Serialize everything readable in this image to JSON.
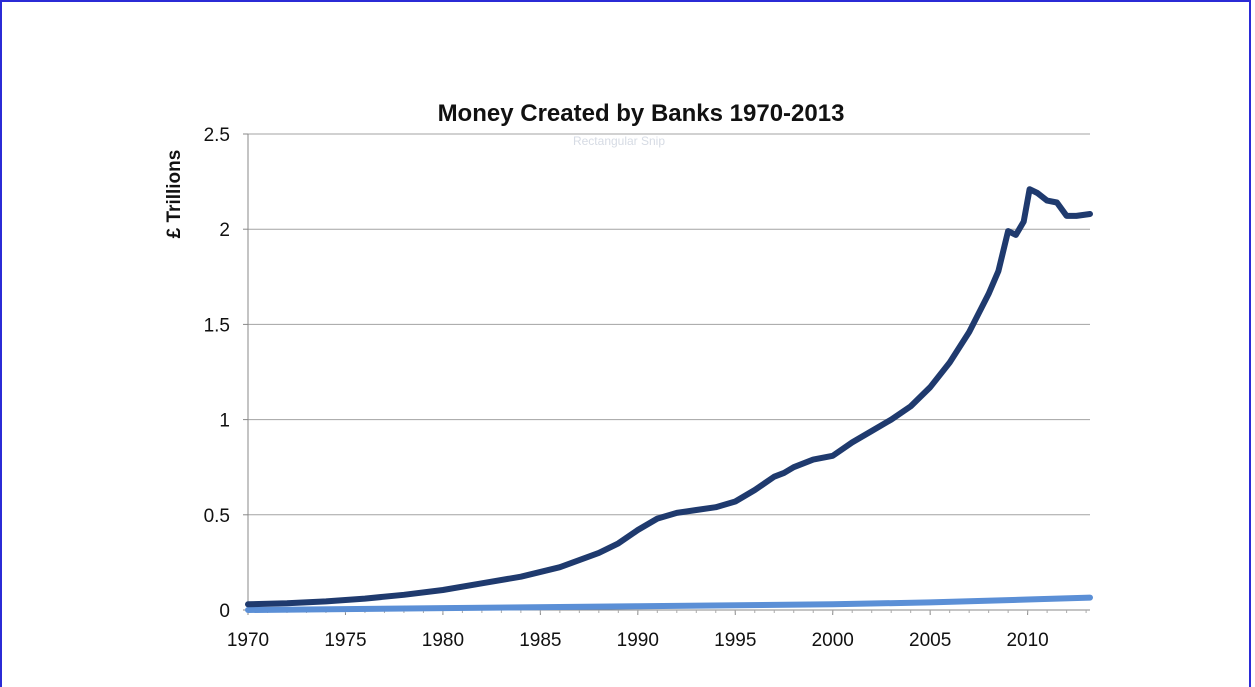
{
  "chart_data": {
    "type": "line",
    "title": "Money Created by Banks 1970-2013",
    "xlabel": "",
    "ylabel": "£ Trillions",
    "xlim": [
      1970,
      2013.2
    ],
    "ylim": [
      0,
      2.5
    ],
    "x_ticks": [
      "1970",
      "1975",
      "1980",
      "1985",
      "1990",
      "1995",
      "2000",
      "2005",
      "2010"
    ],
    "y_ticks": [
      "0",
      "0.5",
      "1",
      "1.5",
      "2",
      "2.5"
    ],
    "grid": true,
    "legend": "none",
    "watermark": "Rectangular Snip",
    "series": [
      {
        "color": "#1f3a6e",
        "points": [
          [
            1970,
            0.03
          ],
          [
            1972,
            0.035
          ],
          [
            1974,
            0.045
          ],
          [
            1976,
            0.06
          ],
          [
            1978,
            0.08
          ],
          [
            1980,
            0.105
          ],
          [
            1982,
            0.14
          ],
          [
            1984,
            0.175
          ],
          [
            1986,
            0.225
          ],
          [
            1988,
            0.3
          ],
          [
            1989,
            0.35
          ],
          [
            1990,
            0.42
          ],
          [
            1991,
            0.48
          ],
          [
            1992,
            0.51
          ],
          [
            1993,
            0.525
          ],
          [
            1994,
            0.54
          ],
          [
            1995,
            0.57
          ],
          [
            1996,
            0.63
          ],
          [
            1997,
            0.7
          ],
          [
            1997.5,
            0.72
          ],
          [
            1998,
            0.75
          ],
          [
            1999,
            0.79
          ],
          [
            2000,
            0.81
          ],
          [
            2001,
            0.88
          ],
          [
            2002,
            0.94
          ],
          [
            2003,
            1.0
          ],
          [
            2004,
            1.07
          ],
          [
            2005,
            1.17
          ],
          [
            2006,
            1.3
          ],
          [
            2007,
            1.46
          ],
          [
            2008,
            1.66
          ],
          [
            2008.5,
            1.78
          ],
          [
            2009,
            1.99
          ],
          [
            2009.4,
            1.97
          ],
          [
            2009.8,
            2.04
          ],
          [
            2010.1,
            2.21
          ],
          [
            2010.5,
            2.19
          ],
          [
            2011,
            2.15
          ],
          [
            2011.5,
            2.14
          ],
          [
            2012,
            2.07
          ],
          [
            2012.5,
            2.07
          ],
          [
            2013.2,
            2.08
          ]
        ]
      },
      {
        "color": "#5b8fd6",
        "points": [
          [
            1970,
            0.0
          ],
          [
            1980,
            0.01
          ],
          [
            1990,
            0.02
          ],
          [
            2000,
            0.03
          ],
          [
            2005,
            0.04
          ],
          [
            2010,
            0.055
          ],
          [
            2013.2,
            0.065
          ]
        ]
      }
    ]
  }
}
